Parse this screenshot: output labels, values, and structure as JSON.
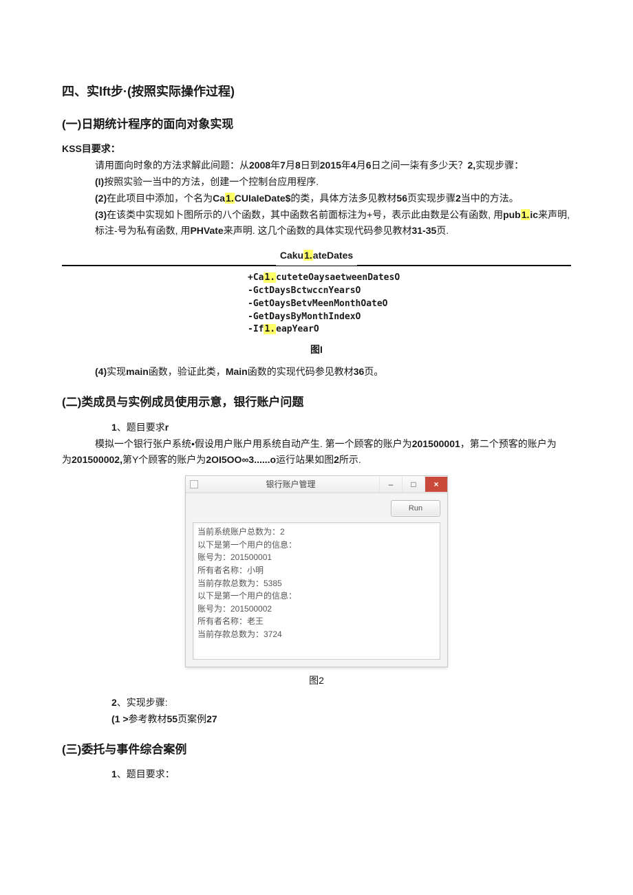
{
  "section4_title": "四、实Ift步·(按照实际操作过程)",
  "part1": {
    "heading": "(一)日期统计程序的面向对象实现",
    "kss_label": "KSS目要求：",
    "intro": "请用面向时象的方法求解此间题：从",
    "intro_b1": "2008",
    "intro_t1": "年",
    "intro_b2": "7",
    "intro_t2": "月",
    "intro_b3": "8",
    "intro_t3": "日到",
    "intro_b4": "2015",
    "intro_t4": "年",
    "intro_b5": "4",
    "intro_t5": "月",
    "intro_b6": "6",
    "intro_t6": "日之间一柒有多少天？",
    "intro_b7": "2,",
    "intro_t7": "实现步骤：",
    "step1_b": "(I)",
    "step1": "按照实验一当中的方法，创建一个控制台应用程序.",
    "step2_b": "(2)",
    "step2_a": "在此项目中添加，个名为",
    "step2_class_pre": "Ca",
    "step2_class_hl": "1.",
    "step2_class_post": "CUIaIeDate$",
    "step2_b2": "的类，具体方法多见教材",
    "step2_b3": "56",
    "step2_b4": "页实现步骤",
    "step2_b5": "2",
    "step2_b6": "当中的方法。",
    "step3_b": "(3)",
    "step3_a": "在该类中实现如卜图所示的八个函数，其中函数名前面标注为+号，表示此由数是公有函数, 用",
    "step3_pub_pre": "pub",
    "step3_pub_hl": "1.",
    "step3_pub_post": "ic",
    "step3_b2": "来声明, 标注-号为私有函数, 用",
    "step3_phv": "PHVate",
    "step3_b3": "来声明. 这几个函数的具体实现代码参见教材",
    "step3_b4": "31-35",
    "step3_b5": "页.",
    "class_title_pre": "Caku",
    "class_title_hl": "1.",
    "class_title_post": "ateDates",
    "funcs": [
      {
        "prefix": "+Ca",
        "hl": "1.",
        "rest": "cuteteOaysaetweenDatesO"
      },
      {
        "prefix": "-",
        "hl": "",
        "rest": "GctDaysBctwccnYearsO"
      },
      {
        "prefix": "-",
        "hl": "",
        "rest": "GetOaysBetvMeenMonthOateO"
      },
      {
        "prefix": "-",
        "hl": "",
        "rest": "GetDaysByMonthIndexO"
      },
      {
        "prefix": "-If",
        "hl": "1.",
        "rest": "eapYearO"
      }
    ],
    "fig1": "图I",
    "step4_b": "(4)",
    "step4_a": "实现",
    "step4_main": "main",
    "step4_b2": "函数，验证此类，",
    "step4_main2": "Main",
    "step4_b3": "函数的实现代码参见教材",
    "step4_b4": "36",
    "step4_b5": "页。"
  },
  "part2": {
    "heading": "(二)类成员与实例成员使用示意，银行账户问题",
    "req_b": "1",
    "req": "、题目要求",
    "req_r": "r",
    "desc_a": "模拟一个银行张户系统•假设用户账户用系统自动产生. 第一个顾客的账户为",
    "desc_b1": "201500001",
    "desc_c": "，第二个预客的账户为",
    "desc_b2": "201500002,",
    "desc_d": "第Y个顾客的账户为",
    "desc_b3": "2OI5OO∞3......o",
    "desc_e": "运行站果如图",
    "desc_b4": "2",
    "desc_f": "所示.",
    "app": {
      "title": "银行账户管理",
      "run_btn": "Run",
      "lines": [
        "当前系统账户总数为：2",
        "以下是第一个用户的信息：",
        "账号为：201500001",
        "所有者名称：小明",
        "当前存款总数为：5385",
        "以下是第一个用户的信息：",
        "账号为：201500002",
        "所有者名称：老王",
        "当前存款总数为：3724"
      ]
    },
    "fig2": "图2",
    "steps_b": "2",
    "steps": "、实现步骤:",
    "step1_b": "(1 >",
    "step1_a": "参考教材",
    "step1_c": "55",
    "step1_d": "页案例",
    "step1_e": "27"
  },
  "part3": {
    "heading": "(三)委托与事件综合案例",
    "req_b": "1",
    "req": "、题目要求："
  }
}
